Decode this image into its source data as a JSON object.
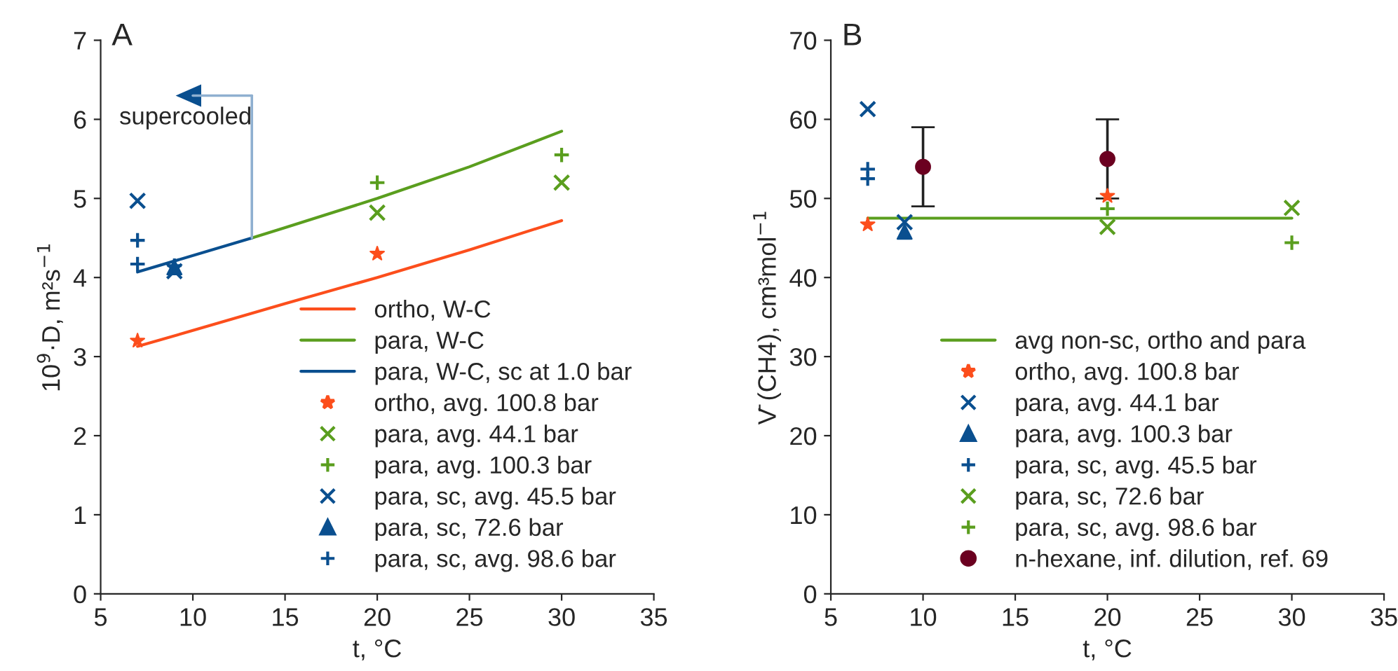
{
  "chart_data": [
    {
      "type": "line",
      "title": "A",
      "xlabel": "t, °C",
      "ylabel": "10$^{9}$·D, m²s$^{−1}$",
      "xlim": [
        5,
        35
      ],
      "xticks": [
        5,
        10,
        15,
        20,
        25,
        30,
        35
      ],
      "ylim": [
        0,
        7
      ],
      "yticks": [
        0,
        1,
        2,
        3,
        4,
        5,
        6,
        7
      ],
      "legend": "bottom right",
      "grid": false,
      "annotations": [
        {
          "text": "supercooled",
          "x": 13.2,
          "y": 4.5
        }
      ],
      "series": [
        {
          "name": "ortho, W-C",
          "color": "#fc4e1c",
          "x": [
            7,
            10,
            15,
            20,
            25,
            30
          ],
          "values": [
            3.13,
            3.33,
            3.67,
            4.0,
            4.35,
            4.72
          ]
        },
        {
          "name": "para, W-C",
          "color": "#5a9e1e",
          "x": [
            13.2,
            15,
            20,
            25,
            30
          ],
          "values": [
            4.5,
            4.63,
            5.0,
            5.4,
            5.85
          ]
        },
        {
          "name": "para, W-C, sc at 1.0 bar",
          "color": "#0a4f8f",
          "x": [
            7,
            13.2
          ],
          "values": [
            4.07,
            4.5
          ]
        },
        {
          "name": "ortho, avg. 100.8 bar",
          "type": "scatter",
          "marker": "star",
          "color": "#fc4e1c",
          "x": [
            7,
            20
          ],
          "values": [
            3.2,
            4.3
          ]
        },
        {
          "name": "para, avg. 44.1 bar",
          "type": "scatter",
          "marker": "cross",
          "color": "#5a9e1e",
          "x": [
            20,
            30
          ],
          "values": [
            4.82,
            5.2
          ]
        },
        {
          "name": "para, avg. 100.3 bar",
          "type": "scatter",
          "marker": "plus",
          "color": "#5a9e1e",
          "x": [
            20,
            30
          ],
          "values": [
            5.2,
            5.55
          ]
        },
        {
          "name": "para, sc, avg. 45.5 bar",
          "type": "scatter",
          "marker": "cross",
          "color": "#0a4f8f",
          "x": [
            7,
            9
          ],
          "values": [
            4.97,
            4.08
          ]
        },
        {
          "name": "para, sc, 72.6 bar",
          "type": "scatter",
          "marker": "triangle",
          "color": "#0a4f8f",
          "x": [
            9
          ],
          "values": [
            4.13
          ]
        },
        {
          "name": "para, sc, avg. 98.6 bar",
          "type": "scatter",
          "marker": "plus",
          "color": "#0a4f8f",
          "x": [
            7,
            7,
            9
          ],
          "values": [
            4.47,
            4.17,
            4.15
          ]
        }
      ]
    },
    {
      "type": "line",
      "title": "B",
      "xlabel": "t, °C",
      "ylabel": "V̄ (CH4), cm³mol$^{−1}$",
      "xlim": [
        5,
        35
      ],
      "xticks": [
        5,
        10,
        15,
        20,
        25,
        30,
        35
      ],
      "ylim": [
        0,
        70
      ],
      "yticks": [
        0,
        10,
        20,
        30,
        40,
        50,
        60,
        70
      ],
      "legend": "bottom",
      "grid": false,
      "series": [
        {
          "name": "avg non-sc, ortho and para",
          "color": "#5a9e1e",
          "x": [
            7,
            30
          ],
          "values": [
            47.5,
            47.5
          ]
        },
        {
          "name": "ortho, avg. 100.8 bar",
          "type": "scatter",
          "marker": "star",
          "color": "#fc4e1c",
          "x": [
            7,
            20
          ],
          "values": [
            46.7,
            50.3
          ]
        },
        {
          "name": "para, avg. 44.1 bar",
          "type": "scatter",
          "marker": "cross",
          "color": "#0a4f8f",
          "x": [
            7,
            9
          ],
          "values": [
            61.3,
            47.0
          ]
        },
        {
          "name": "para, avg. 100.3 bar",
          "type": "scatter",
          "marker": "triangle",
          "color": "#0a4f8f",
          "x": [
            9
          ],
          "values": [
            45.8
          ]
        },
        {
          "name": "para, sc, avg. 45.5 bar",
          "type": "scatter",
          "marker": "plus",
          "color": "#0a4f8f",
          "x": [
            7,
            7
          ],
          "values": [
            53.7,
            52.5
          ]
        },
        {
          "name": "para, sc, 72.6 bar",
          "type": "scatter",
          "marker": "cross",
          "color": "#5a9e1e",
          "x": [
            20,
            30
          ],
          "values": [
            46.4,
            48.8
          ]
        },
        {
          "name": "para, sc, avg. 98.6 bar",
          "type": "scatter",
          "marker": "plus",
          "color": "#5a9e1e",
          "x": [
            20,
            30
          ],
          "values": [
            48.7,
            44.4
          ]
        },
        {
          "name": "n-hexane, inf. dilution, ref. 69",
          "type": "scatter",
          "marker": "circle",
          "color": "#6b0020",
          "x": [
            10,
            20
          ],
          "values": [
            54.0,
            55.0
          ],
          "errors": [
            5,
            5
          ]
        }
      ]
    }
  ]
}
